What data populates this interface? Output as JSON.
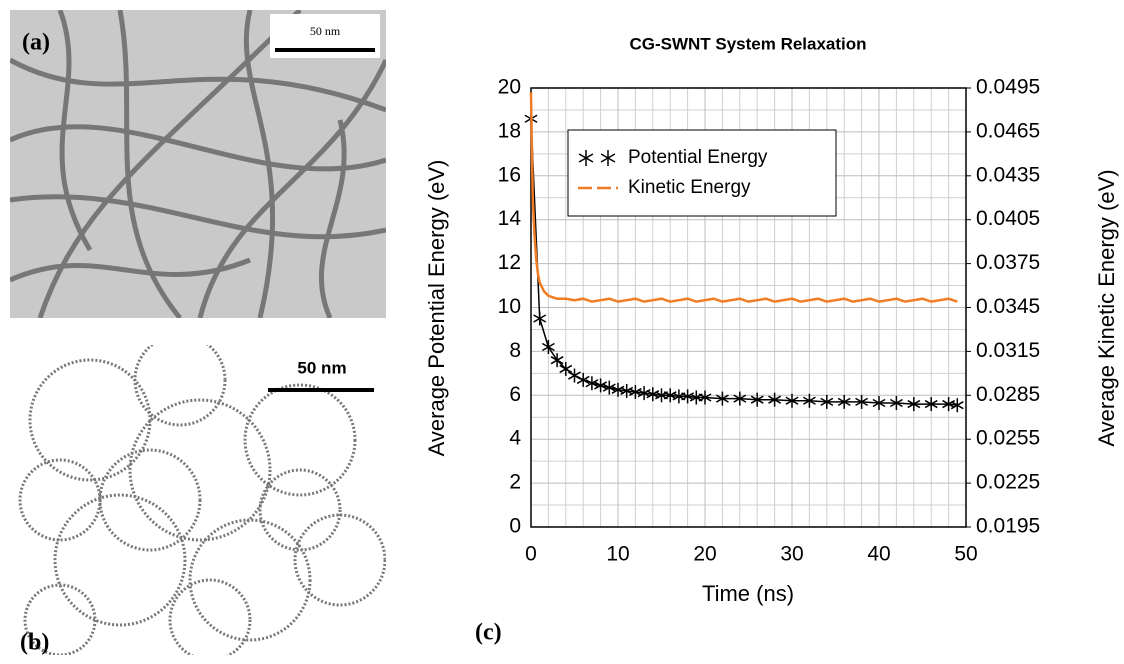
{
  "panels": [
    {
      "label": "(a)",
      "scale_bar": "50 nm"
    },
    {
      "label": "(b)",
      "scale_bar": "50 nm"
    }
  ],
  "chart_data": {
    "type": "line",
    "panel_label": "(c)",
    "title": "CG-SWNT System Relaxation",
    "x_label": "Time (ns)",
    "y_label": "Average Potential Energy (eV)",
    "y2_label": "Average Kinetic Energy (eV)",
    "xlim": [
      0,
      50
    ],
    "xticks": [
      0,
      10,
      20,
      30,
      40,
      50
    ],
    "ylim": [
      0,
      20
    ],
    "yticks": [
      0,
      2,
      4,
      6,
      8,
      10,
      12,
      14,
      16,
      18,
      20
    ],
    "y2lim": [
      0.0195,
      0.0495
    ],
    "y2ticks": [
      0.0195,
      0.0225,
      0.0255,
      0.0285,
      0.0315,
      0.0345,
      0.0375,
      0.0405,
      0.0435,
      0.0465,
      0.0495
    ],
    "grid": true,
    "legend": "upper left",
    "series": [
      {
        "name": "Potential Energy",
        "color": "#000000",
        "marker": "asterisk",
        "x": [
          0,
          1,
          2,
          3,
          4,
          5,
          6,
          7,
          8,
          9,
          10,
          11,
          12,
          13,
          14,
          15,
          16,
          17,
          18,
          19,
          20,
          22,
          24,
          26,
          28,
          30,
          32,
          34,
          36,
          38,
          40,
          42,
          44,
          46,
          48,
          49
        ],
        "values": [
          18.6,
          9.5,
          8.2,
          7.6,
          7.2,
          6.9,
          6.7,
          6.55,
          6.45,
          6.35,
          6.25,
          6.2,
          6.15,
          6.1,
          6.05,
          6.0,
          6.0,
          5.95,
          5.95,
          5.9,
          5.9,
          5.85,
          5.85,
          5.8,
          5.8,
          5.75,
          5.75,
          5.7,
          5.7,
          5.7,
          5.65,
          5.65,
          5.6,
          5.6,
          5.6,
          5.55
        ]
      },
      {
        "name": "Kinetic Energy",
        "color": "#f07c24",
        "axis": "y2",
        "x": [
          0,
          0.1,
          0.2,
          0.4,
          0.6,
          0.8,
          1,
          1.5,
          2,
          3,
          4,
          5,
          6,
          7,
          8,
          9,
          10,
          11,
          12,
          13,
          14,
          15,
          16,
          17,
          18,
          19,
          20,
          21,
          22,
          23,
          24,
          25,
          26,
          27,
          28,
          29,
          30,
          31,
          32,
          33,
          34,
          35,
          36,
          37,
          38,
          39,
          40,
          41,
          42,
          43,
          44,
          45,
          46,
          47,
          48,
          49
        ],
        "values": [
          0.0492,
          0.0455,
          0.042,
          0.0395,
          0.0378,
          0.0368,
          0.0362,
          0.0356,
          0.0353,
          0.0351,
          0.0351,
          0.035,
          0.0351,
          0.0349,
          0.035,
          0.0351,
          0.0349,
          0.035,
          0.0351,
          0.0349,
          0.035,
          0.0351,
          0.0349,
          0.035,
          0.0351,
          0.0349,
          0.035,
          0.0351,
          0.0349,
          0.035,
          0.0351,
          0.0349,
          0.035,
          0.0351,
          0.0349,
          0.035,
          0.0351,
          0.0349,
          0.035,
          0.0351,
          0.0349,
          0.035,
          0.0351,
          0.0349,
          0.035,
          0.0351,
          0.0349,
          0.035,
          0.0351,
          0.0349,
          0.035,
          0.0351,
          0.0349,
          0.035,
          0.0351,
          0.0349
        ]
      }
    ]
  }
}
